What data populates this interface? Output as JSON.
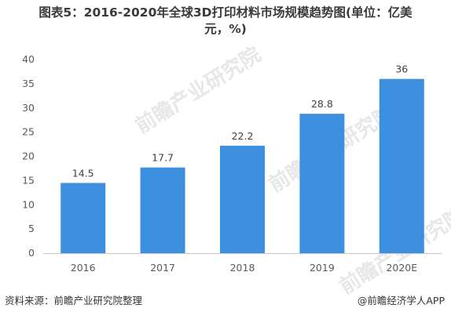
{
  "title_line1": "图表5：2016-2020年全球3D打印材料市场规模趋势图(单位：亿美",
  "title_line2": "元，%)",
  "source": "资料来源：前瞻产业研究院整理",
  "brand": "@前瞻经济学人APP",
  "watermark": "前瞻产业研究院",
  "colors": {
    "bar": "#3d8fe0",
    "axis": "#c8c8c8",
    "tick_text": "#595959",
    "label_text": "#404040"
  },
  "chart_data": {
    "type": "bar",
    "categories": [
      "2016",
      "2017",
      "2018",
      "2019",
      "2020E"
    ],
    "values": [
      14.5,
      17.7,
      22.2,
      28.8,
      36
    ],
    "value_labels": [
      "14.5",
      "17.7",
      "22.2",
      "28.8",
      "36"
    ],
    "yticks": [
      "0",
      "5",
      "10",
      "15",
      "20",
      "25",
      "30",
      "35",
      "40"
    ],
    "ylim": [
      0,
      40
    ],
    "grid": false,
    "legend": "none"
  }
}
